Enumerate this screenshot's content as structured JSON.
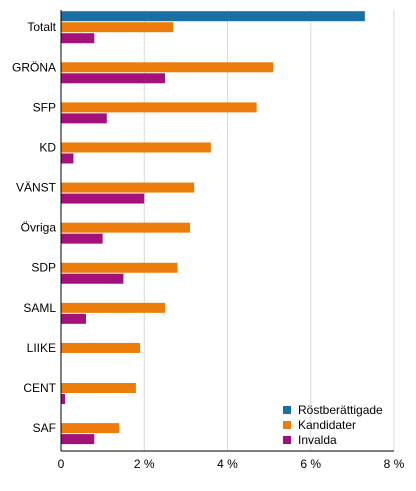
{
  "chart_data": {
    "type": "bar",
    "orientation": "horizontal",
    "categories": [
      "Totalt",
      "GRÖNA",
      "SFP",
      "KD",
      "VÄNST",
      "Övriga",
      "SDP",
      "SAML",
      "LIIKE",
      "CENT",
      "SAF"
    ],
    "series": [
      {
        "name": "Röstberättigade",
        "color": "#1a6fa3",
        "values": [
          7.3,
          0,
          0,
          0,
          0,
          0,
          0,
          0,
          0,
          0,
          0
        ]
      },
      {
        "name": "Kandidater",
        "color": "#ed7d0b",
        "values": [
          2.7,
          5.1,
          4.7,
          3.6,
          3.2,
          3.1,
          2.8,
          2.5,
          1.9,
          1.8,
          1.4
        ]
      },
      {
        "name": "Invalda",
        "color": "#a3117a",
        "values": [
          0.8,
          2.5,
          1.1,
          0.3,
          2.0,
          1.0,
          1.5,
          0.6,
          0,
          0.1,
          0.8
        ]
      }
    ],
    "x_ticks": [
      "0",
      "2 %",
      "4 %",
      "6 %",
      "8 %"
    ],
    "xlim": [
      0,
      8
    ],
    "grid": true,
    "legend_position": "bottom-right"
  }
}
